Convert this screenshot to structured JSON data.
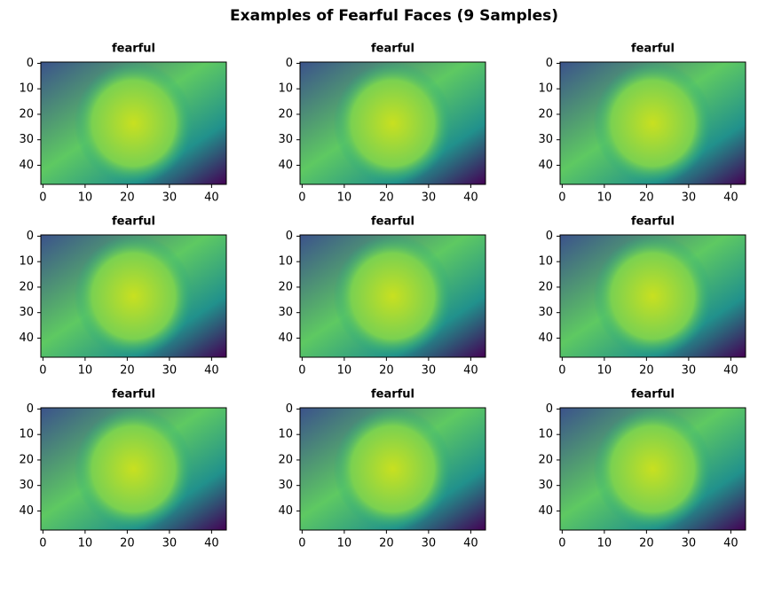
{
  "title": "Examples of Fearful Faces (9 Samples)",
  "chart_data": [
    {
      "type": "image",
      "title": "fearful",
      "xlim": [
        -0.5,
        43.5
      ],
      "ylim": [
        47.5,
        -0.5
      ],
      "xticks": [
        0,
        10,
        20,
        30,
        40
      ],
      "yticks": [
        0,
        10,
        20,
        30,
        40
      ]
    },
    {
      "type": "image",
      "title": "fearful",
      "xlim": [
        -0.5,
        43.5
      ],
      "ylim": [
        47.5,
        -0.5
      ],
      "xticks": [
        0,
        10,
        20,
        30,
        40
      ],
      "yticks": [
        0,
        10,
        20,
        30,
        40
      ]
    },
    {
      "type": "image",
      "title": "fearful",
      "xlim": [
        -0.5,
        43.5
      ],
      "ylim": [
        47.5,
        -0.5
      ],
      "xticks": [
        0,
        10,
        20,
        30,
        40
      ],
      "yticks": [
        0,
        10,
        20,
        30,
        40
      ]
    },
    {
      "type": "image",
      "title": "fearful",
      "xlim": [
        -0.5,
        43.5
      ],
      "ylim": [
        47.5,
        -0.5
      ],
      "xticks": [
        0,
        10,
        20,
        30,
        40
      ],
      "yticks": [
        0,
        10,
        20,
        30,
        40
      ]
    },
    {
      "type": "image",
      "title": "fearful",
      "xlim": [
        -0.5,
        43.5
      ],
      "ylim": [
        47.5,
        -0.5
      ],
      "xticks": [
        0,
        10,
        20,
        30,
        40
      ],
      "yticks": [
        0,
        10,
        20,
        30,
        40
      ]
    },
    {
      "type": "image",
      "title": "fearful",
      "xlim": [
        -0.5,
        43.5
      ],
      "ylim": [
        47.5,
        -0.5
      ],
      "xticks": [
        0,
        10,
        20,
        30,
        40
      ],
      "yticks": [
        0,
        10,
        20,
        30,
        40
      ]
    },
    {
      "type": "image",
      "title": "fearful",
      "xlim": [
        -0.5,
        43.5
      ],
      "ylim": [
        47.5,
        -0.5
      ],
      "xticks": [
        0,
        10,
        20,
        30,
        40
      ],
      "yticks": [
        0,
        10,
        20,
        30,
        40
      ]
    },
    {
      "type": "image",
      "title": "fearful",
      "xlim": [
        -0.5,
        43.5
      ],
      "ylim": [
        47.5,
        -0.5
      ],
      "xticks": [
        0,
        10,
        20,
        30,
        40
      ],
      "yticks": [
        0,
        10,
        20,
        30,
        40
      ]
    },
    {
      "type": "image",
      "title": "fearful",
      "xlim": [
        -0.5,
        43.5
      ],
      "ylim": [
        47.5,
        -0.5
      ],
      "xticks": [
        0,
        10,
        20,
        30,
        40
      ],
      "yticks": [
        0,
        10,
        20,
        30,
        40
      ]
    }
  ]
}
